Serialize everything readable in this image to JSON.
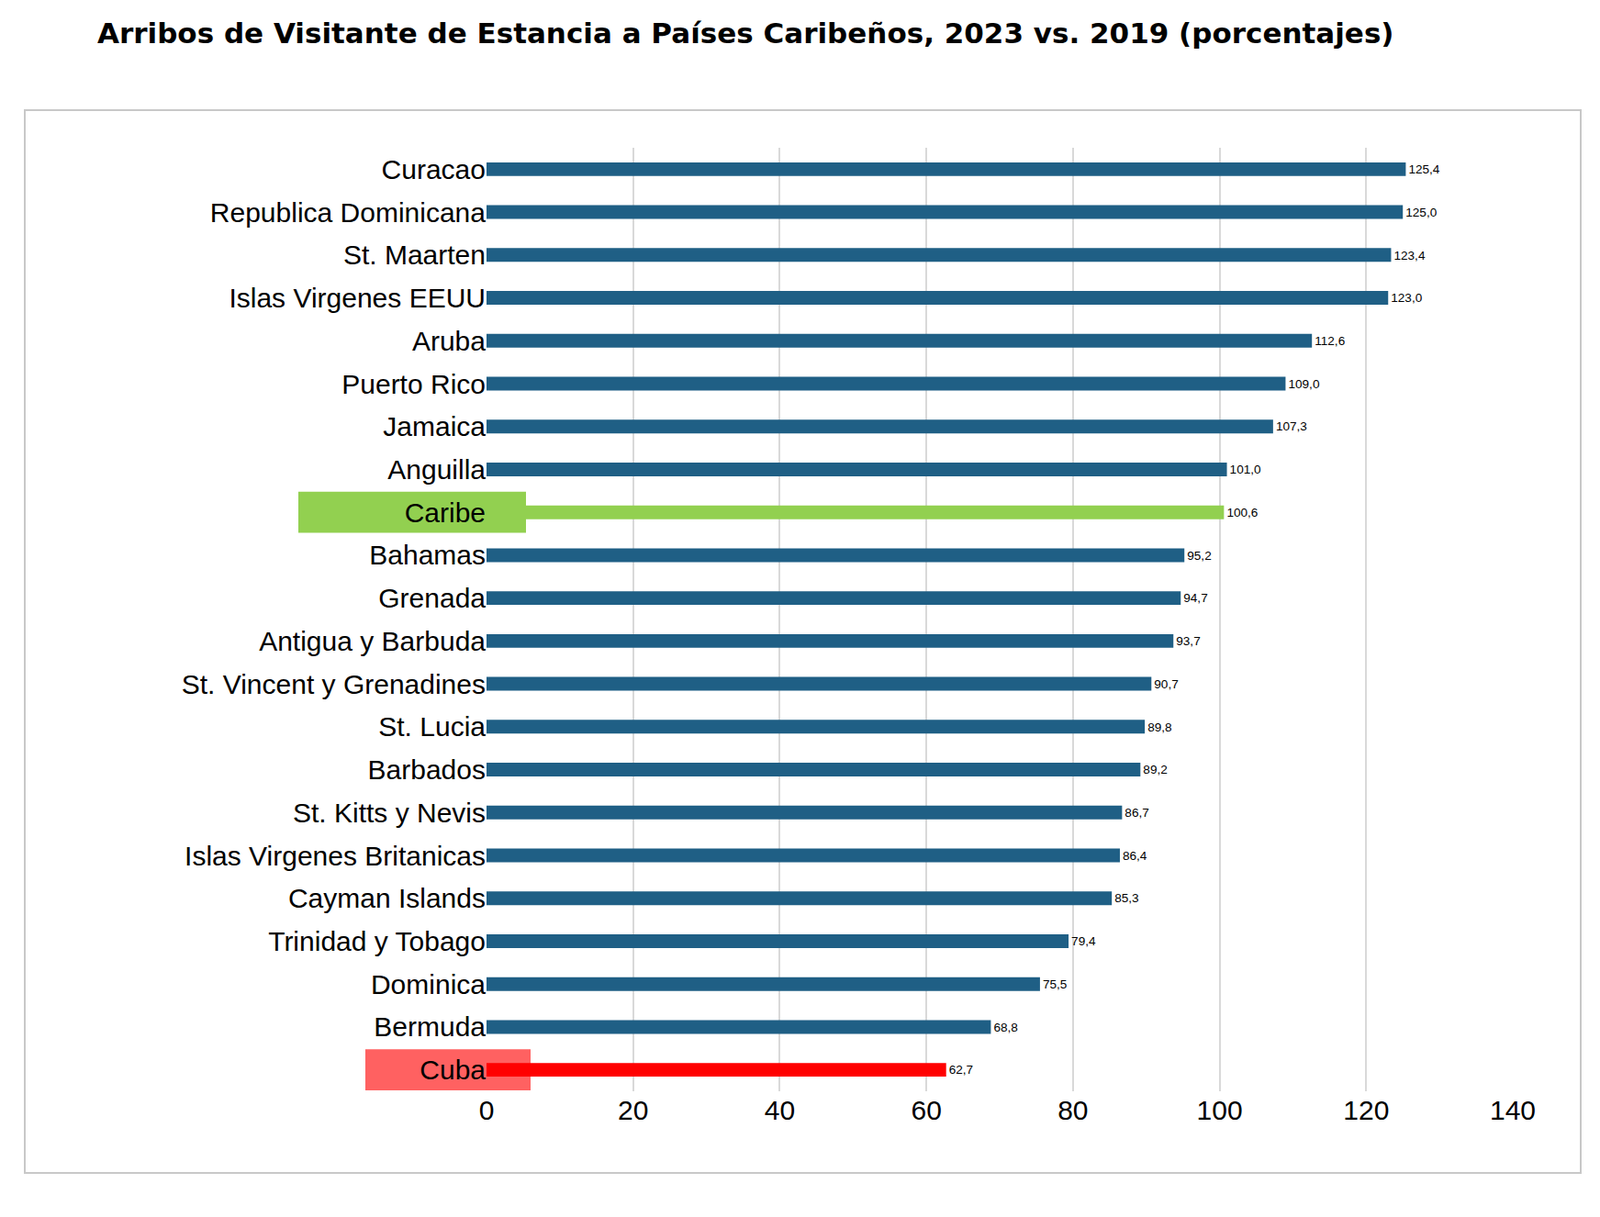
{
  "chart_data": {
    "type": "bar",
    "orientation": "horizontal",
    "title": "Arribos de Visitante de Estancia a Países Caribeños, 2023 vs. 2019 (porcentajes)",
    "categories": [
      "Curacao",
      "Republica Dominicana",
      "St. Maarten",
      "Islas Virgenes EEUU",
      "Aruba",
      "Puerto Rico",
      "Jamaica",
      "Anguilla",
      "Caribe",
      "Bahamas",
      "Grenada",
      "Antigua y Barbuda",
      "St. Vincent y Grenadines",
      "St. Lucia",
      "Barbados",
      "St. Kitts y Nevis",
      "Islas Virgenes Britanicas",
      "Cayman Islands",
      "Trinidad y Tobago",
      "Dominica",
      "Bermuda",
      "Cuba"
    ],
    "values": [
      125.4,
      125.0,
      123.4,
      123.0,
      112.6,
      109.0,
      107.3,
      101.0,
      100.6,
      95.2,
      94.7,
      93.7,
      90.7,
      89.8,
      89.2,
      86.7,
      86.4,
      85.3,
      79.4,
      75.5,
      68.8,
      62.7
    ],
    "value_labels": [
      "125,4",
      "125,0",
      "123,4",
      "123,0",
      "112,6",
      "109,0",
      "107,3",
      "101,0",
      "100,6",
      "95,2",
      "94,7",
      "93,7",
      "90,7",
      "89,8",
      "89,2",
      "86,7",
      "86,4",
      "85,3",
      "79,4",
      "75,5",
      "68,8",
      "62,7"
    ],
    "colors": [
      "#1f5f85",
      "#1f5f85",
      "#1f5f85",
      "#1f5f85",
      "#1f5f85",
      "#1f5f85",
      "#1f5f85",
      "#1f5f85",
      "#92d050",
      "#1f5f85",
      "#1f5f85",
      "#1f5f85",
      "#1f5f85",
      "#1f5f85",
      "#1f5f85",
      "#1f5f85",
      "#1f5f85",
      "#1f5f85",
      "#1f5f85",
      "#1f5f85",
      "#1f5f85",
      "#ff0000"
    ],
    "xlim": [
      0,
      140
    ],
    "xticks": [
      0,
      20,
      40,
      60,
      80,
      100,
      120,
      140
    ],
    "grid": true,
    "data_labels": true
  }
}
